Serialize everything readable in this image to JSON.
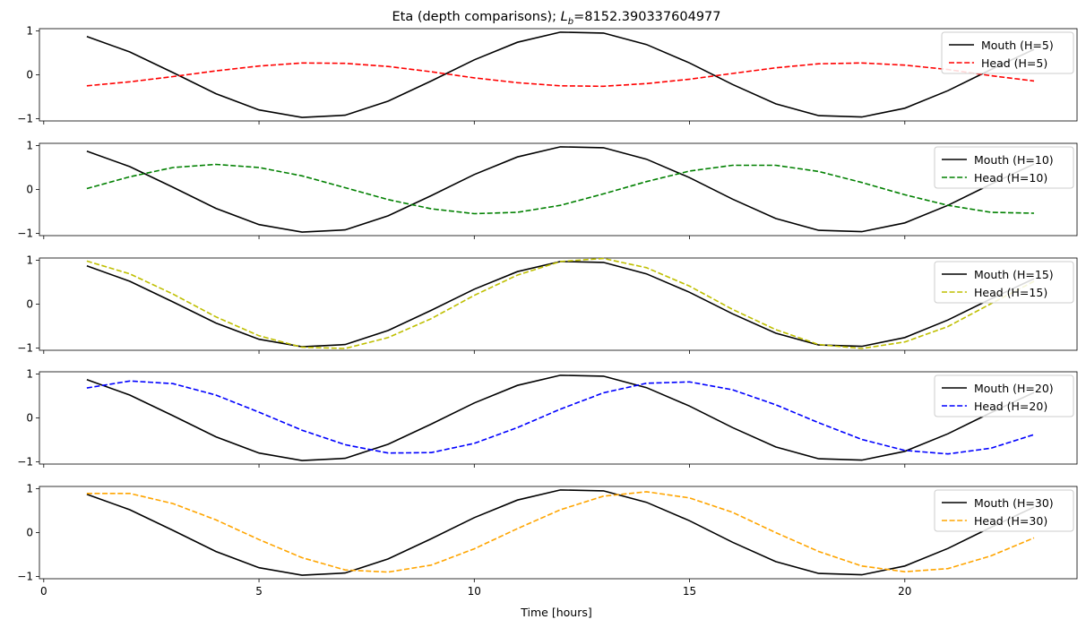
{
  "chart_data": {
    "type": "line",
    "title_prefix": "Eta (depth comparisons); ",
    "title_symbol": "L",
    "title_subscript": "b",
    "title_value": "=8152.390337604977",
    "xlabel": "Time [hours]",
    "xlim": [
      -0.1,
      24.0
    ],
    "ylim": [
      -1.05,
      1.05
    ],
    "xticks": [
      0,
      5,
      10,
      15,
      20
    ],
    "yticks": [
      -1,
      0,
      1
    ],
    "grid": false,
    "legend_position": "top-right",
    "x": [
      1,
      2,
      3,
      4,
      5,
      6,
      7,
      8,
      9,
      10,
      11,
      12,
      13,
      14,
      15,
      16,
      17,
      18,
      19,
      20,
      21,
      22,
      23
    ],
    "mouth_color": "#000000",
    "panels": [
      {
        "mouth_label": "Mouth (H=5)",
        "head_label": "Head (H=5)",
        "head_color": "#ff0000",
        "mouth": [
          0.87,
          0.52,
          0.05,
          -0.43,
          -0.8,
          -0.97,
          -0.92,
          -0.6,
          -0.14,
          0.34,
          0.74,
          0.97,
          0.95,
          0.69,
          0.27,
          -0.22,
          -0.66,
          -0.93,
          -0.96,
          -0.76,
          -0.36,
          0.12,
          0.58
        ],
        "head": [
          -0.25,
          -0.16,
          -0.04,
          0.09,
          0.2,
          0.27,
          0.26,
          0.19,
          0.07,
          -0.07,
          -0.18,
          -0.25,
          -0.26,
          -0.2,
          -0.1,
          0.03,
          0.16,
          0.25,
          0.27,
          0.22,
          0.12,
          -0.02,
          -0.14
        ]
      },
      {
        "mouth_label": "Mouth (H=10)",
        "head_label": "Head (H=10)",
        "head_color": "#008000",
        "mouth": [
          0.87,
          0.52,
          0.05,
          -0.43,
          -0.8,
          -0.97,
          -0.92,
          -0.6,
          -0.14,
          0.34,
          0.74,
          0.97,
          0.95,
          0.69,
          0.27,
          -0.22,
          -0.66,
          -0.93,
          -0.96,
          -0.76,
          -0.36,
          0.12,
          0.58
        ],
        "head": [
          0.02,
          0.29,
          0.5,
          0.57,
          0.5,
          0.31,
          0.04,
          -0.23,
          -0.44,
          -0.55,
          -0.52,
          -0.36,
          -0.1,
          0.18,
          0.42,
          0.55,
          0.55,
          0.41,
          0.16,
          -0.12,
          -0.36,
          -0.52,
          -0.54
        ]
      },
      {
        "mouth_label": "Mouth (H=15)",
        "head_label": "Head (H=15)",
        "head_color": "#bfbf00",
        "mouth": [
          0.87,
          0.52,
          0.05,
          -0.43,
          -0.8,
          -0.97,
          -0.92,
          -0.6,
          -0.14,
          0.34,
          0.74,
          0.97,
          0.95,
          0.69,
          0.27,
          -0.22,
          -0.66,
          -0.93,
          -0.96,
          -0.76,
          -0.36,
          0.12,
          0.58
        ],
        "head": [
          0.98,
          0.69,
          0.23,
          -0.29,
          -0.72,
          -0.98,
          -1.01,
          -0.76,
          -0.33,
          0.2,
          0.66,
          0.97,
          1.04,
          0.83,
          0.41,
          -0.12,
          -0.58,
          -0.92,
          -1.01,
          -0.86,
          -0.51,
          0.01,
          0.52
        ]
      },
      {
        "mouth_label": "Mouth (H=20)",
        "head_label": "Head (H=20)",
        "head_color": "#0000ff",
        "mouth": [
          0.87,
          0.52,
          0.05,
          -0.43,
          -0.8,
          -0.97,
          -0.92,
          -0.6,
          -0.14,
          0.34,
          0.74,
          0.97,
          0.95,
          0.69,
          0.27,
          -0.22,
          -0.66,
          -0.93,
          -0.96,
          -0.76,
          -0.36,
          0.12,
          0.58
        ],
        "head": [
          0.68,
          0.84,
          0.78,
          0.52,
          0.13,
          -0.28,
          -0.61,
          -0.8,
          -0.79,
          -0.58,
          -0.22,
          0.2,
          0.57,
          0.79,
          0.82,
          0.64,
          0.3,
          -0.11,
          -0.49,
          -0.74,
          -0.82,
          -0.69,
          -0.38
        ]
      },
      {
        "mouth_label": "Mouth (H=30)",
        "head_label": "Head (H=30)",
        "head_color": "#ffa500",
        "mouth": [
          0.87,
          0.52,
          0.05,
          -0.43,
          -0.8,
          -0.97,
          -0.92,
          -0.6,
          -0.14,
          0.34,
          0.74,
          0.97,
          0.95,
          0.69,
          0.27,
          -0.22,
          -0.66,
          -0.93,
          -0.96,
          -0.76,
          -0.36,
          0.12,
          0.58
        ],
        "head": [
          0.89,
          0.89,
          0.66,
          0.29,
          -0.16,
          -0.57,
          -0.85,
          -0.9,
          -0.74,
          -0.37,
          0.09,
          0.52,
          0.83,
          0.93,
          0.79,
          0.46,
          0.0,
          -0.43,
          -0.76,
          -0.89,
          -0.82,
          -0.53,
          -0.12
        ]
      }
    ]
  }
}
